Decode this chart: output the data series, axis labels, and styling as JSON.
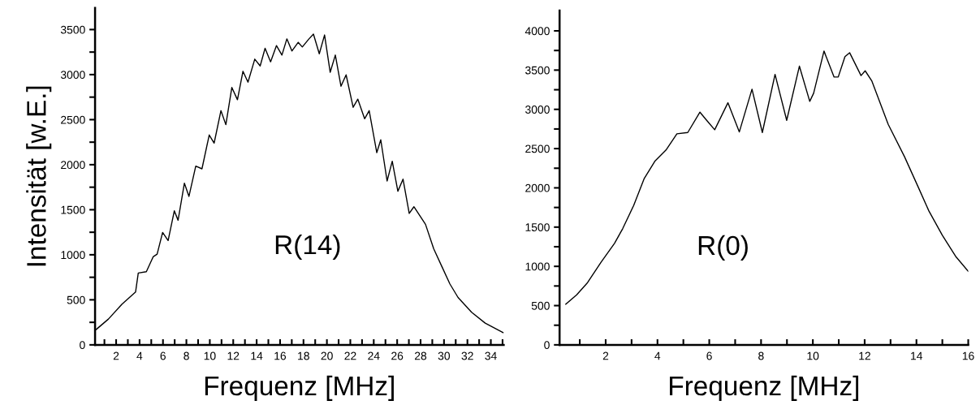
{
  "chart_data": [
    {
      "type": "line",
      "xlabel": "Frequenz [MHz]",
      "ylabel": "Intensität [w.E.]",
      "annotations": [
        "R(14)"
      ],
      "color": "#000000",
      "x": [
        0.3,
        1.34,
        2.5,
        3.66,
        3.89,
        4.58,
        5.16,
        5.5,
        5.97,
        6.44,
        6.97,
        7.29,
        7.83,
        8.22,
        8.8,
        9.33,
        9.95,
        10.37,
        10.95,
        11.37,
        11.88,
        12.36,
        12.83,
        13.26,
        13.84,
        14.3,
        14.72,
        15.19,
        15.69,
        16.16,
        16.58,
        17.01,
        17.55,
        17.9,
        18.47,
        18.85,
        19.35,
        19.8,
        20.28,
        20.72,
        21.2,
        21.64,
        22.24,
        22.64,
        23.22,
        23.61,
        24.26,
        24.6,
        25.14,
        25.58,
        26.06,
        26.5,
        27.03,
        27.43,
        28.42,
        29.12,
        29.81,
        30.5,
        31.2,
        32.36,
        33.52,
        35.05
      ],
      "values": [
        171,
        286,
        451,
        586,
        797,
        812,
        977,
        1007,
        1248,
        1158,
        1488,
        1383,
        1795,
        1648,
        1984,
        1954,
        2330,
        2240,
        2600,
        2444,
        2857,
        2721,
        3037,
        2916,
        3172,
        3096,
        3292,
        3142,
        3322,
        3217,
        3397,
        3262,
        3358,
        3307,
        3397,
        3450,
        3231,
        3440,
        3026,
        3217,
        2871,
        2997,
        2637,
        2727,
        2510,
        2600,
        2134,
        2276,
        1819,
        2038,
        1705,
        1840,
        1459,
        1533,
        1338,
        1067,
        872,
        677,
        526,
        361,
        241,
        135
      ],
      "xlim": [
        0.2,
        35.1
      ],
      "ylim": [
        0,
        3740
      ],
      "xticks": [
        {
          "value": 1,
          "label": null
        },
        2,
        {
          "value": 3,
          "label": null
        },
        4,
        {
          "value": 5,
          "label": null
        },
        6,
        {
          "value": 7,
          "label": null
        },
        8,
        {
          "value": 9,
          "label": null
        },
        10,
        {
          "value": 11,
          "label": null
        },
        12,
        {
          "value": 13,
          "label": null
        },
        14,
        {
          "value": 15,
          "label": null
        },
        16,
        {
          "value": 17,
          "label": null
        },
        18,
        {
          "value": 19,
          "label": null
        },
        20,
        {
          "value": 21,
          "label": null
        },
        22,
        {
          "value": 23,
          "label": null
        },
        24,
        {
          "value": 25,
          "label": null
        },
        26,
        {
          "value": 27,
          "label": null
        },
        28,
        {
          "value": 29,
          "label": null
        },
        30,
        {
          "value": 31,
          "label": null
        },
        32,
        {
          "value": 33,
          "label": null
        },
        34,
        {
          "value": 35,
          "label": null
        }
      ],
      "yticks": [
        0,
        {
          "value": 250,
          "label": null
        },
        500,
        {
          "value": 750,
          "label": null
        },
        1000,
        {
          "value": 1250,
          "label": null
        },
        1500,
        {
          "value": 1750,
          "label": null
        },
        2000,
        {
          "value": 2250,
          "label": null
        },
        2500,
        {
          "value": 2750,
          "label": null
        },
        3000,
        {
          "value": 3250,
          "label": null
        },
        3500
      ],
      "grid": false,
      "legend": false,
      "marker": "none",
      "line_style": "solid"
    },
    {
      "type": "line",
      "xlabel": "Frequenz [MHz]",
      "annotations": [
        "R(0)"
      ],
      "color": "#000000",
      "x": [
        0.46,
        0.88,
        1.3,
        1.82,
        2.34,
        2.66,
        3.08,
        3.49,
        3.91,
        4.33,
        4.75,
        5.17,
        5.64,
        5.9,
        6.21,
        6.72,
        7.16,
        7.65,
        8.05,
        8.54,
        8.99,
        9.48,
        9.88,
        10.03,
        10.43,
        10.82,
        10.98,
        11.24,
        11.42,
        11.86,
        12.02,
        12.28,
        12.91,
        13.54,
        14.06,
        14.48,
        15.0,
        15.53,
        16.0
      ],
      "values": [
        517,
        638,
        793,
        1052,
        1293,
        1482,
        1775,
        2120,
        2344,
        2482,
        2688,
        2705,
        2964,
        2860,
        2740,
        3084,
        2712,
        3257,
        2705,
        3446,
        2860,
        3550,
        3102,
        3205,
        3743,
        3412,
        3412,
        3671,
        3722,
        3430,
        3491,
        3360,
        2809,
        2396,
        2016,
        1706,
        1396,
        1120,
        938
      ],
      "xlim": [
        0.22,
        16
      ],
      "ylim": [
        0,
        4260
      ],
      "xticks": [
        {
          "value": 1,
          "label": null
        },
        2,
        {
          "value": 3,
          "label": null
        },
        4,
        {
          "value": 5,
          "label": null
        },
        6,
        {
          "value": 7,
          "label": null
        },
        8,
        {
          "value": 9,
          "label": null
        },
        10,
        {
          "value": 11,
          "label": null
        },
        12,
        {
          "value": 13,
          "label": null
        },
        14,
        {
          "value": 15,
          "label": null
        },
        16
      ],
      "yticks": [
        0,
        {
          "value": 250,
          "label": null
        },
        500,
        {
          "value": 750,
          "label": null
        },
        1000,
        {
          "value": 1250,
          "label": null
        },
        1500,
        {
          "value": 1750,
          "label": null
        },
        2000,
        {
          "value": 2250,
          "label": null
        },
        2500,
        {
          "value": 2750,
          "label": null
        },
        3000,
        {
          "value": 3250,
          "label": null
        },
        3500,
        {
          "value": 3750,
          "label": null
        },
        4000
      ],
      "grid": false,
      "legend": false,
      "marker": "none",
      "line_style": "solid"
    }
  ]
}
